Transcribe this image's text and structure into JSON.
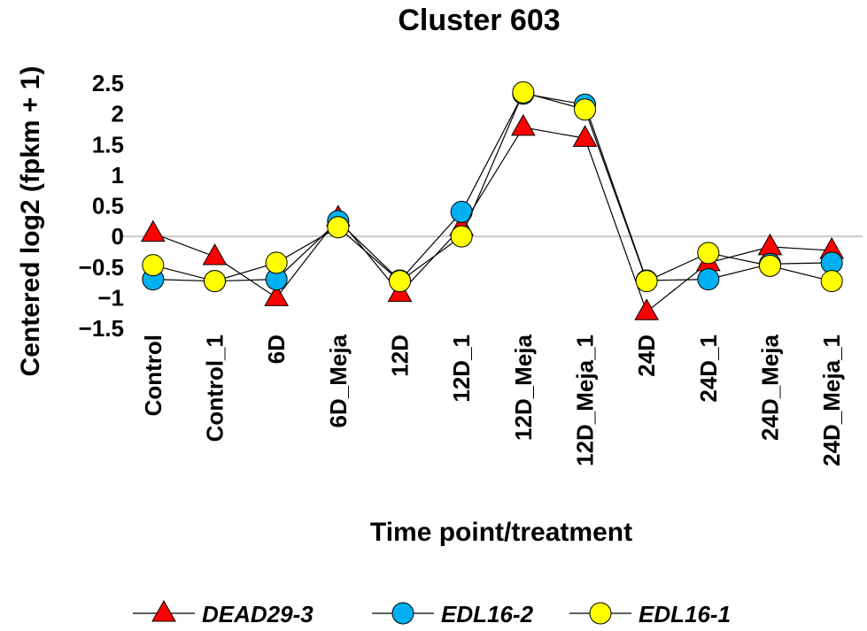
{
  "chart_data": {
    "type": "line",
    "title": "Cluster 603",
    "xlabel": "Time point/treatment",
    "ylabel": "Centered log2 (fpkm + 1)",
    "ylim": [
      -1.5,
      2.5
    ],
    "yticks": [
      {
        "value": 2.5,
        "label": "2.5"
      },
      {
        "value": 2,
        "label": "2"
      },
      {
        "value": 1.5,
        "label": "1.5"
      },
      {
        "value": 1,
        "label": "1"
      },
      {
        "value": 0.5,
        "label": "0.5"
      },
      {
        "value": 0,
        "label": "0"
      },
      {
        "value": -0.5,
        "label": "−0.5"
      },
      {
        "value": -1,
        "label": "−1"
      },
      {
        "value": -1.5,
        "label": "−1.5"
      }
    ],
    "categories": [
      "Control",
      "Control_1",
      "6D",
      "6D_Meja",
      "12D",
      "12D_1",
      "12D_Meja",
      "12D_Meja_1",
      "24D",
      "24D_1",
      "24D_Meja",
      "24D_Meja_1"
    ],
    "zero_line": true,
    "grid": false,
    "legend_position": "bottom",
    "series": [
      {
        "name": "DEAD29-3",
        "marker": "triangle",
        "color": "#ff0000",
        "values": [
          0.05,
          -0.33,
          -1.0,
          0.3,
          -0.93,
          0.15,
          1.78,
          1.6,
          -1.23,
          -0.43,
          -0.17,
          -0.23
        ]
      },
      {
        "name": "EDL16-2",
        "marker": "circle",
        "color": "#00b0f0",
        "values": [
          -0.7,
          -0.73,
          -0.7,
          0.25,
          -0.72,
          0.4,
          2.33,
          2.15,
          -0.72,
          -0.7,
          -0.45,
          -0.43
        ]
      },
      {
        "name": "EDL16-1",
        "marker": "circle",
        "color": "#ffff00",
        "values": [
          -0.47,
          -0.73,
          -0.43,
          0.15,
          -0.73,
          0.0,
          2.35,
          2.07,
          -0.73,
          -0.27,
          -0.48,
          -0.73
        ]
      }
    ]
  }
}
